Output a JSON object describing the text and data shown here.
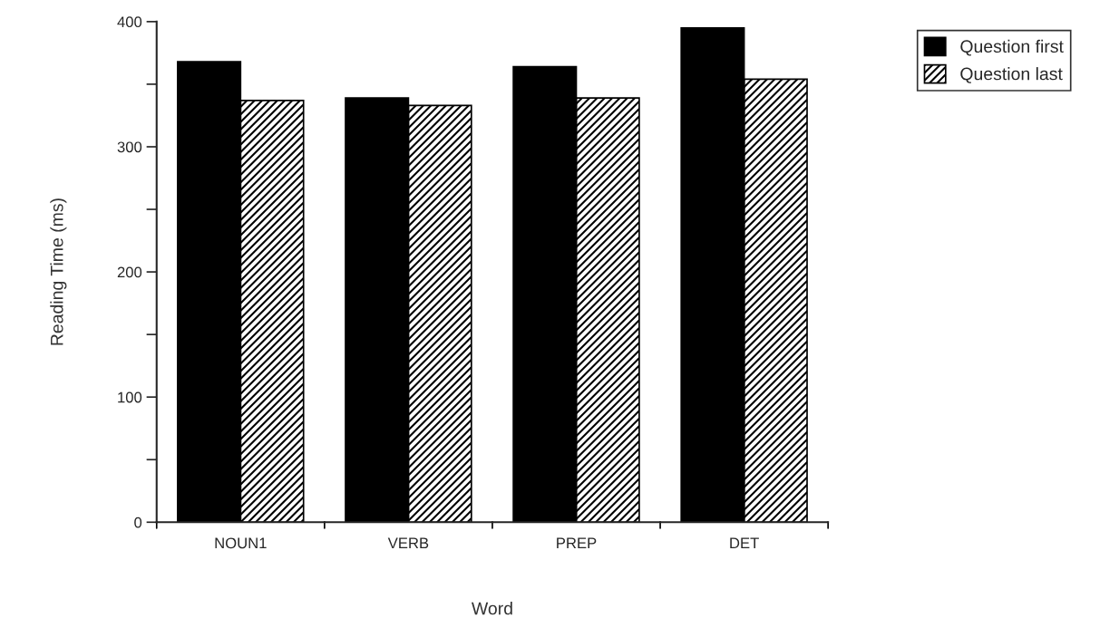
{
  "chart_data": {
    "type": "bar",
    "xlabel": "Word",
    "ylabel": "Reading Time (ms)",
    "categories": [
      "NOUN1",
      "VERB",
      "PREP",
      "DET"
    ],
    "series": [
      {
        "name": "Question first",
        "color": "#000000",
        "values": [
          368,
          339,
          364,
          395
        ]
      },
      {
        "name": "Question last",
        "color": "#000000",
        "values": [
          337,
          333,
          339,
          354
        ]
      }
    ],
    "ylim": [
      0,
      400
    ],
    "yticks": [
      0,
      {
        "value": 50,
        "label": null
      },
      100,
      {
        "value": 150,
        "label": null
      },
      200,
      {
        "value": 250,
        "label": null
      },
      300,
      {
        "value": 350,
        "label": null
      },
      400
    ],
    "grid": false,
    "legend": "top right"
  }
}
